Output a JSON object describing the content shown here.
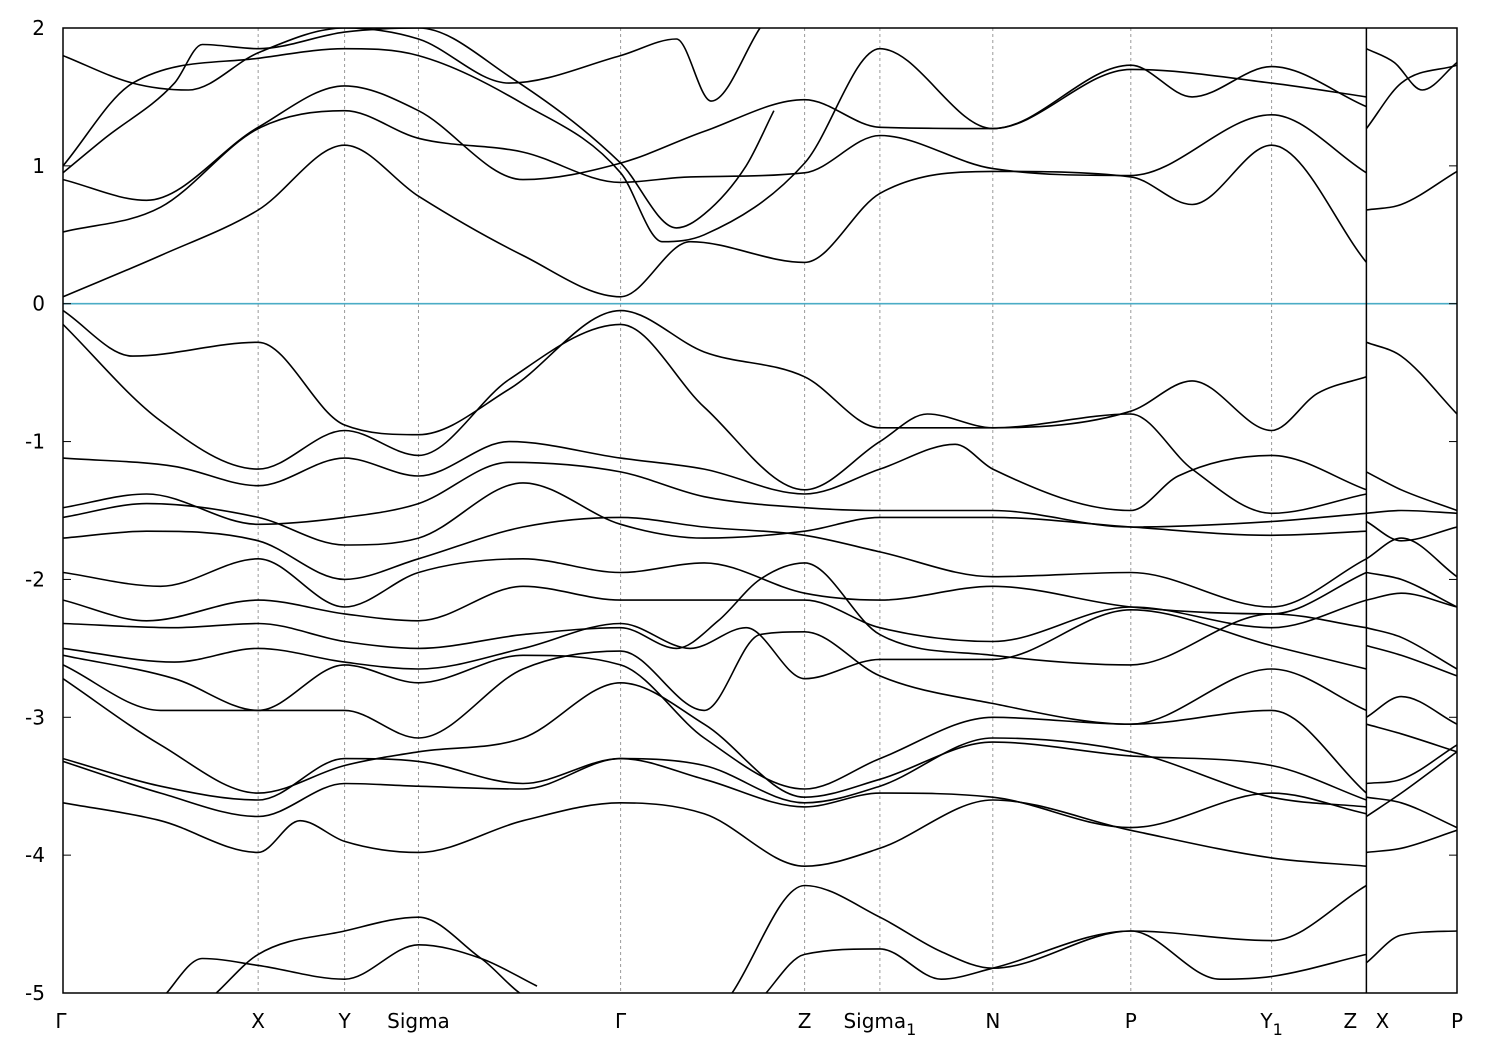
{
  "chart_data": {
    "type": "line",
    "title": "",
    "xlabel": "",
    "ylabel": "",
    "ylim": [
      -5,
      2
    ],
    "xlim": [
      0,
      100
    ],
    "yticks": [
      "2",
      "1",
      "0",
      "-1",
      "-2",
      "-3",
      "-4",
      "-5"
    ],
    "ytick_values": [
      2,
      1,
      0,
      -1,
      -2,
      -3,
      -4,
      -5
    ],
    "kpoints": [
      {
        "label": "Γ",
        "sub": "",
        "x": 0
      },
      {
        "label": "X",
        "sub": "",
        "x": 14.0
      },
      {
        "label": "Y",
        "sub": "",
        "x": 20.2
      },
      {
        "label": "Sigma",
        "sub": "",
        "x": 25.5
      },
      {
        "label": "Γ",
        "sub": "",
        "x": 40.0
      },
      {
        "label": "Z",
        "sub": "",
        "x": 53.2
      },
      {
        "label": "Sigma",
        "sub": "1",
        "x": 58.6
      },
      {
        "label": "N",
        "sub": "",
        "x": 66.7
      },
      {
        "label": "P",
        "sub": "",
        "x": 76.6
      },
      {
        "label": "Y",
        "sub": "1",
        "x": 86.7
      },
      {
        "label": "Z",
        "sub": "",
        "x": 93.5
      },
      {
        "label": "X",
        "sub": "",
        "x": 93.5
      },
      {
        "label": "P",
        "sub": "",
        "x": 100
      }
    ],
    "segment_break_x": 93.5,
    "fermi_level": 0,
    "grid": "dashed vertical lines at high-symmetry points",
    "legend": "none",
    "colors": {
      "bands": "#000000",
      "fermi": "#4bacc6",
      "kpoint_lines": "#9a9a9a"
    },
    "series": [
      {
        "x": [
          0,
          7,
          14,
          20.2,
          25.5,
          33,
          40,
          45,
          53.2,
          58.6,
          66.7,
          76.6,
          81,
          86.7,
          93.5
        ],
        "values": [
          0.05,
          0.35,
          0.68,
          1.15,
          0.78,
          0.35,
          0.05,
          0.45,
          0.3,
          0.8,
          0.96,
          0.92,
          0.72,
          1.15,
          0.3
        ]
      },
      {
        "x": [
          93.5,
          96,
          100
        ],
        "values": [
          0.68,
          0.72,
          0.96
        ]
      },
      {
        "x": [
          0,
          7,
          14,
          20.2,
          25.5,
          33,
          40,
          45,
          53.2,
          58.6,
          66.7,
          76.6,
          86.7,
          93.5
        ],
        "values": [
          0.52,
          0.7,
          1.27,
          1.4,
          1.2,
          1.1,
          0.88,
          0.92,
          0.95,
          1.22,
          0.98,
          0.93,
          1.37,
          0.95
        ]
      },
      {
        "x": [
          0,
          6,
          14,
          20.2,
          25.5,
          33,
          40,
          46,
          53.2,
          58.6,
          66.7,
          76.6,
          81,
          86.7,
          93.5
        ],
        "values": [
          0.9,
          0.75,
          1.28,
          1.58,
          1.4,
          0.9,
          1.02,
          1.25,
          1.48,
          1.28,
          1.27,
          1.73,
          1.5,
          1.72,
          1.43
        ]
      },
      {
        "x": [
          93.5,
          96,
          100
        ],
        "values": [
          1.27,
          1.6,
          1.73
        ]
      },
      {
        "x": [
          0,
          5,
          14,
          20.2,
          25.5,
          33,
          40,
          43,
          46,
          53.2,
          58.6,
          66.7,
          76.6,
          86.7,
          93.5
        ],
        "values": [
          1.0,
          1.6,
          1.78,
          1.85,
          1.8,
          1.45,
          0.95,
          0.45,
          0.5,
          1.02,
          1.85,
          1.27,
          1.7,
          1.6,
          1.5
        ]
      },
      {
        "x": [
          0,
          5,
          9,
          14,
          20.2,
          25.5,
          32,
          40,
          44,
          46.5,
          50
        ],
        "values": [
          1.8,
          1.6,
          1.55,
          1.82,
          2.0,
          1.92,
          1.6,
          1.8,
          1.92,
          1.47,
          2.0
        ]
      },
      {
        "x": [
          0,
          3,
          8,
          10,
          14,
          20.2,
          25.5,
          32,
          40,
          44,
          46,
          49,
          51
        ],
        "values": [
          0.95,
          1.2,
          1.6,
          1.88,
          1.85,
          1.97,
          2.0,
          1.65,
          1.02,
          0.55,
          0.65,
          1.0,
          1.4
        ]
      },
      {
        "x": [
          93.5,
          95.5,
          97.5,
          100
        ],
        "values": [
          1.85,
          1.75,
          1.55,
          1.75
        ]
      },
      {
        "x": [
          93.5,
          96,
          100
        ],
        "values": [
          -0.28,
          -0.38,
          -0.8
        ]
      },
      {
        "x": [
          0,
          5,
          14,
          20.2,
          25.5,
          32,
          40,
          46,
          53.2,
          58.6,
          66.7,
          76.6,
          81,
          86.7,
          90,
          93.5
        ],
        "values": [
          -0.05,
          -0.38,
          -0.28,
          -0.88,
          -0.95,
          -0.62,
          -0.05,
          -0.35,
          -0.53,
          -0.9,
          -0.9,
          -0.78,
          -0.56,
          -0.92,
          -0.65,
          -0.53
        ]
      },
      {
        "x": [
          0,
          7,
          14,
          20.2,
          25.5,
          32,
          40,
          46,
          53.2,
          58.6,
          62,
          66.7,
          76.6,
          81,
          86.7,
          93.5
        ],
        "values": [
          -0.15,
          -0.85,
          -1.2,
          -0.92,
          -1.1,
          -0.55,
          -0.15,
          -0.75,
          -1.35,
          -1.0,
          -0.8,
          -0.9,
          -0.8,
          -1.2,
          -1.52,
          -1.38
        ]
      },
      {
        "x": [
          0,
          8,
          14,
          20.2,
          25.5,
          32,
          40,
          46,
          53.2,
          58.6,
          64,
          66.7,
          76.6,
          80,
          86.7,
          93.5
        ],
        "values": [
          -1.12,
          -1.18,
          -1.32,
          -1.12,
          -1.25,
          -1.0,
          -1.12,
          -1.2,
          -1.38,
          -1.2,
          -1.02,
          -1.2,
          -1.5,
          -1.25,
          -1.1,
          -1.35
        ]
      },
      {
        "x": [
          93.5,
          96,
          100
        ],
        "values": [
          -1.22,
          -1.35,
          -1.5
        ]
      },
      {
        "x": [
          0,
          6,
          14,
          20.2,
          25.5,
          32,
          40,
          46,
          53.2,
          58.6,
          66.7,
          76.6,
          86.7,
          93.5
        ],
        "values": [
          -1.48,
          -1.38,
          -1.6,
          -1.55,
          -1.45,
          -1.15,
          -1.22,
          -1.4,
          -1.48,
          -1.5,
          -1.5,
          -1.62,
          -1.58,
          -1.52
        ]
      },
      {
        "x": [
          93.5,
          96,
          100
        ],
        "values": [
          -1.52,
          -1.5,
          -1.52
        ]
      },
      {
        "x": [
          0,
          6,
          14,
          20.2,
          25.5,
          33,
          40,
          46,
          53.2,
          58.6,
          66.7,
          76.6,
          86.7,
          93.5
        ],
        "values": [
          -1.55,
          -1.45,
          -1.55,
          -1.75,
          -1.7,
          -1.3,
          -1.6,
          -1.7,
          -1.65,
          -1.55,
          -1.55,
          -1.62,
          -1.68,
          -1.65
        ]
      },
      {
        "x": [
          93.5,
          96,
          100
        ],
        "values": [
          -1.58,
          -1.72,
          -1.62
        ]
      },
      {
        "x": [
          0,
          6,
          14,
          20.2,
          25.5,
          33,
          40,
          46,
          53.2,
          58.6,
          66.7,
          76.6,
          86.7,
          93.5
        ],
        "values": [
          -1.7,
          -1.65,
          -1.72,
          -2.0,
          -1.85,
          -1.62,
          -1.55,
          -1.62,
          -1.68,
          -1.8,
          -1.98,
          -1.95,
          -2.2,
          -1.85
        ]
      },
      {
        "x": [
          93.5,
          96,
          100
        ],
        "values": [
          -1.85,
          -1.7,
          -1.98
        ]
      },
      {
        "x": [
          0,
          7,
          14,
          20.2,
          25.5,
          33,
          40,
          46,
          53.2,
          58.6,
          66.7,
          76.6,
          86.7,
          93.5
        ],
        "values": [
          -1.95,
          -2.05,
          -1.85,
          -2.2,
          -1.95,
          -1.85,
          -1.95,
          -1.88,
          -2.1,
          -2.15,
          -2.05,
          -2.2,
          -2.25,
          -1.95
        ]
      },
      {
        "x": [
          93.5,
          96,
          100
        ],
        "values": [
          -1.95,
          -2.0,
          -2.2
        ]
      },
      {
        "x": [
          0,
          6,
          14,
          20.2,
          25.5,
          33,
          40,
          46,
          53.2,
          58.6,
          66.7,
          76.6,
          86.7,
          93.5
        ],
        "values": [
          -2.15,
          -2.3,
          -2.15,
          -2.25,
          -2.3,
          -2.05,
          -2.15,
          -2.15,
          -2.15,
          -2.35,
          -2.45,
          -2.2,
          -2.35,
          -2.15
        ]
      },
      {
        "x": [
          93.5,
          96,
          100
        ],
        "values": [
          -2.15,
          -2.1,
          -2.2
        ]
      },
      {
        "x": [
          0,
          8,
          14,
          20.2,
          25.5,
          33,
          40,
          44,
          47,
          50,
          53.2,
          58.6,
          66.7,
          76.6,
          86.7,
          93.5
        ],
        "values": [
          -2.32,
          -2.35,
          -2.32,
          -2.45,
          -2.5,
          -2.4,
          -2.35,
          -2.5,
          -2.3,
          -2.0,
          -1.88,
          -2.4,
          -2.55,
          -2.62,
          -2.25,
          -2.35
        ]
      },
      {
        "x": [
          93.5,
          96,
          100
        ],
        "values": [
          -2.35,
          -2.42,
          -2.65
        ]
      },
      {
        "x": [
          0,
          8,
          14,
          20.2,
          25.5,
          33,
          40,
          45,
          49,
          53.2,
          58.6,
          66.7,
          76.6,
          86.7,
          93.5
        ],
        "values": [
          -2.5,
          -2.6,
          -2.5,
          -2.6,
          -2.65,
          -2.5,
          -2.32,
          -2.5,
          -2.35,
          -2.72,
          -2.58,
          -2.58,
          -2.22,
          -2.48,
          -2.65
        ]
      },
      {
        "x": [
          93.5,
          96,
          100
        ],
        "values": [
          -2.48,
          -2.55,
          -2.7
        ]
      },
      {
        "x": [
          0,
          8,
          14,
          20.2,
          25.5,
          33,
          40,
          46,
          50,
          53.2,
          58.6,
          66.7,
          76.6,
          86.7,
          93.5
        ],
        "values": [
          -2.55,
          -2.72,
          -2.95,
          -2.95,
          -3.15,
          -2.65,
          -2.52,
          -2.95,
          -2.4,
          -2.38,
          -2.7,
          -2.9,
          -3.05,
          -2.65,
          -2.95
        ]
      },
      {
        "x": [
          93.5,
          96,
          100
        ],
        "values": [
          -3.0,
          -2.85,
          -3.05
        ]
      },
      {
        "x": [
          0,
          7,
          14,
          20.2,
          25.5,
          33,
          40,
          46,
          53.2,
          58.6,
          66.7,
          76.6,
          86.7,
          93.5
        ],
        "values": [
          -2.62,
          -2.95,
          -2.95,
          -2.62,
          -2.75,
          -2.55,
          -2.62,
          -3.15,
          -3.52,
          -3.3,
          -3.0,
          -3.05,
          -2.95,
          -3.55
        ]
      },
      {
        "x": [
          93.5,
          96,
          100
        ],
        "values": [
          -3.05,
          -3.12,
          -3.25
        ]
      },
      {
        "x": [
          0,
          7,
          14,
          20.2,
          25.5,
          33,
          40,
          46,
          53.2,
          58.6,
          66.7,
          76.6,
          86.7,
          93.5
        ],
        "values": [
          -2.72,
          -3.2,
          -3.55,
          -3.35,
          -3.25,
          -3.15,
          -2.75,
          -3.05,
          -3.58,
          -3.45,
          -3.18,
          -3.28,
          -3.35,
          -3.6
        ]
      },
      {
        "x": [
          93.5,
          96,
          100
        ],
        "values": [
          -3.48,
          -3.45,
          -3.2
        ]
      },
      {
        "x": [
          0,
          7,
          14,
          20.2,
          25.5,
          33,
          40,
          46,
          53.2,
          58.6,
          66.7,
          76.6,
          86.7,
          93.5
        ],
        "values": [
          -3.3,
          -3.5,
          -3.6,
          -3.3,
          -3.32,
          -3.48,
          -3.3,
          -3.35,
          -3.62,
          -3.5,
          -3.15,
          -3.25,
          -3.58,
          -3.65
        ]
      },
      {
        "x": [
          93.5,
          96,
          100
        ],
        "values": [
          -3.58,
          -3.62,
          -3.8
        ]
      },
      {
        "x": [
          0,
          7,
          14,
          20.2,
          25.5,
          33,
          40,
          46,
          53.2,
          58.6,
          66.7,
          76.6,
          86.7,
          93.5
        ],
        "values": [
          -3.32,
          -3.55,
          -3.72,
          -3.48,
          -3.5,
          -3.52,
          -3.3,
          -3.45,
          -3.65,
          -3.55,
          -3.58,
          -3.8,
          -3.55,
          -3.7
        ]
      },
      {
        "x": [
          93.5,
          96,
          100
        ],
        "values": [
          -3.72,
          -3.55,
          -3.25
        ]
      },
      {
        "x": [
          0,
          7,
          14,
          17,
          20.2,
          25.5,
          33,
          40,
          46,
          53.2,
          58.6,
          66.7,
          76.6,
          86.7,
          93.5
        ],
        "values": [
          -3.62,
          -3.75,
          -3.98,
          -3.75,
          -3.9,
          -3.98,
          -3.75,
          -3.62,
          -3.7,
          -4.08,
          -3.95,
          -3.6,
          -3.82,
          -4.02,
          -4.08
        ]
      },
      {
        "x": [
          93.5,
          96,
          100
        ],
        "values": [
          -3.98,
          -3.95,
          -3.82
        ]
      },
      {
        "x": [
          11,
          14,
          20.2,
          25.5,
          30,
          34,
          37
        ],
        "values": [
          -5.0,
          -4.72,
          -4.55,
          -4.45,
          -4.75,
          -5.05,
          -5.05
        ]
      },
      {
        "x": [
          7,
          10,
          14,
          20.2,
          25.5,
          30,
          34
        ],
        "values": [
          -5.05,
          -4.75,
          -4.8,
          -4.9,
          -4.65,
          -4.75,
          -4.95
        ]
      },
      {
        "x": [
          48,
          53.2,
          58.6,
          63,
          66.7,
          76.6,
          86.7,
          93.5
        ],
        "values": [
          -5.0,
          -4.22,
          -4.45,
          -4.7,
          -4.82,
          -4.55,
          -4.62,
          -4.22
        ]
      },
      {
        "x": [
          50,
          53.2,
          58.6,
          63,
          66.7,
          76.6,
          83,
          86.7,
          93.5
        ],
        "values": [
          -5.05,
          -4.72,
          -4.68,
          -4.9,
          -4.82,
          -4.55,
          -4.9,
          -4.88,
          -4.72
        ]
      },
      {
        "x": [
          93.5,
          96,
          100
        ],
        "values": [
          -4.78,
          -4.58,
          -4.55
        ]
      }
    ]
  }
}
